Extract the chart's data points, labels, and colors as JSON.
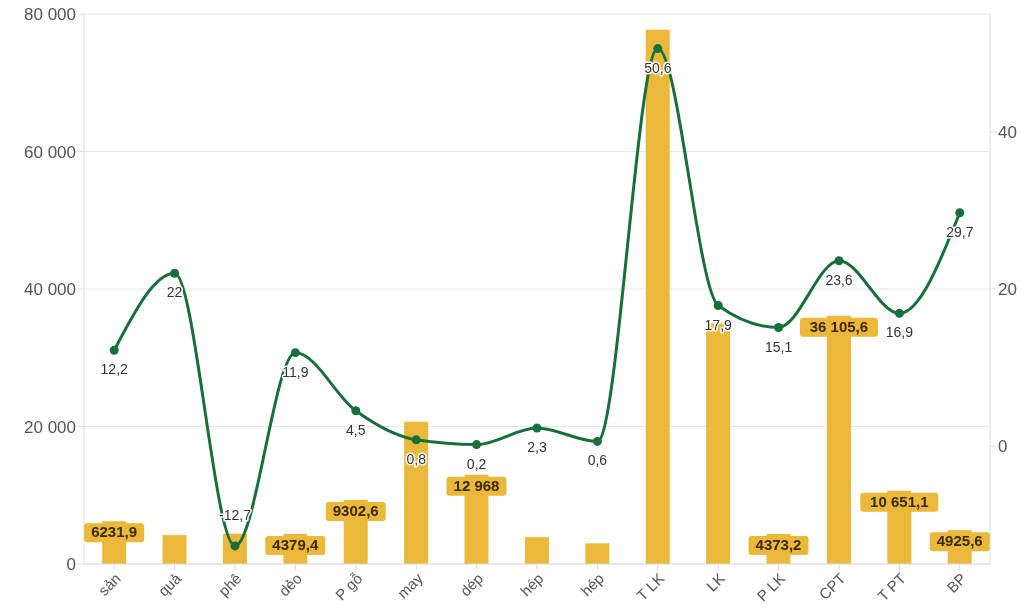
{
  "chart_data": {
    "type": "bar",
    "categories": [
      "sản",
      "quả",
      "phê",
      "dẻo",
      "P gỗ",
      "may",
      "dép",
      "hép",
      "hép",
      "T LK",
      "LK",
      "P LK",
      "CPT",
      "T PT",
      "BP"
    ],
    "series": [
      {
        "color": "#ebb83a",
        "values": [
          6231.9,
          4200,
          4400,
          4379.4,
          9302.6,
          20700,
          12968,
          3900,
          3000,
          77700,
          35000,
          4373.2,
          36105.6,
          10651.1,
          4925.6
        ],
        "value_labels": [
          "6231,9",
          null,
          null,
          "4379,4",
          "9302,6",
          null,
          "12 968",
          null,
          null,
          null,
          null,
          "4373,2",
          "36 105,6",
          "10 651,1",
          "4925,6"
        ]
      },
      {
        "type": "line",
        "axis": "y2",
        "color": "#17703a",
        "values": [
          12.2,
          22,
          -12.7,
          11.9,
          4.5,
          0.8,
          0.2,
          2.3,
          0.6,
          50.6,
          17.9,
          15.1,
          23.6,
          16.9,
          29.7
        ],
        "value_labels": [
          "12,2",
          "22",
          "-12,7",
          "11,9",
          "4,5",
          "0,8",
          "0,2",
          "2,3",
          "0,6",
          "50,6",
          "17,9",
          "15,1",
          "23,6",
          "16,9",
          "29,7"
        ]
      }
    ],
    "ylim": [
      0,
      80000
    ],
    "yticks": [
      {
        "value": 0,
        "label": "0"
      },
      {
        "value": 20000,
        "label": "20 000"
      },
      {
        "value": 40000,
        "label": "40 000"
      },
      {
        "value": 60000,
        "label": "60 000"
      },
      {
        "value": 80000,
        "label": "80 000"
      }
    ],
    "y2lim": [
      -15,
      55
    ],
    "y2ticks": [
      0,
      20,
      40
    ],
    "grid": "y",
    "marker": "circle"
  }
}
